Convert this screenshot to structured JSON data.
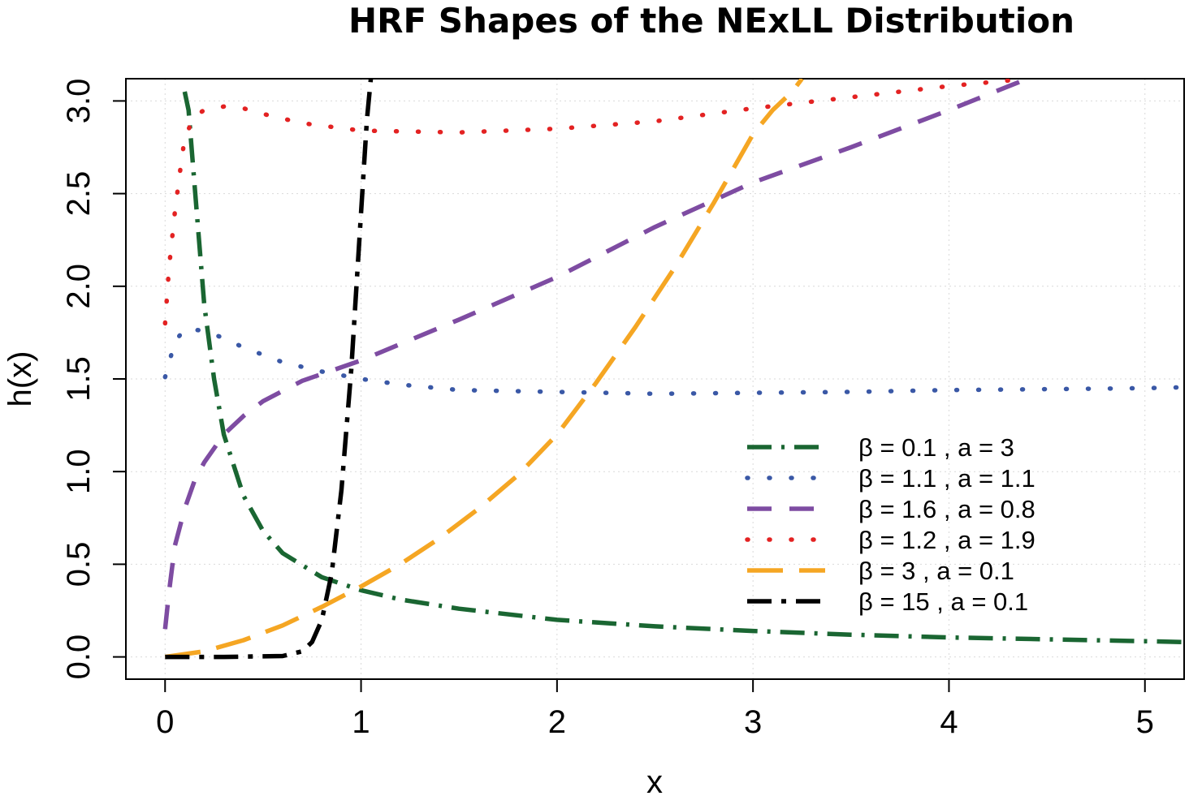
{
  "chart_data": {
    "type": "line",
    "title": "HRF Shapes of the NExLL Distribution",
    "xlabel": "x",
    "ylabel": "h(x)",
    "xlim": [
      -0.2,
      5.2
    ],
    "ylim": [
      -0.12,
      3.12
    ],
    "x_ticks": [
      0,
      1,
      2,
      3,
      4,
      5
    ],
    "x_tick_labels": [
      "0",
      "1",
      "2",
      "3",
      "4",
      "5"
    ],
    "y_ticks": [
      0,
      0.5,
      1,
      1.5,
      2,
      2.5,
      3
    ],
    "y_tick_labels": [
      "0.0",
      "0.5",
      "1.0",
      "1.5",
      "2.0",
      "2.5",
      "3.0"
    ],
    "grid": true,
    "legend_position": "right",
    "series": [
      {
        "name": "β = 0.1 ,  a = 3",
        "color": "#1a6632",
        "style": "dashdot",
        "x": [
          0.1,
          0.12,
          0.15,
          0.2,
          0.25,
          0.3,
          0.4,
          0.5,
          0.6,
          0.8,
          1.0,
          1.2,
          1.5,
          2.0,
          2.5,
          3.0,
          3.5,
          4.0,
          4.5,
          5.0,
          5.2
        ],
        "y": [
          3.05,
          2.95,
          2.55,
          1.9,
          1.5,
          1.2,
          0.87,
          0.68,
          0.56,
          0.43,
          0.36,
          0.31,
          0.26,
          0.2,
          0.165,
          0.14,
          0.12,
          0.105,
          0.095,
          0.085,
          0.08
        ]
      },
      {
        "name": "β = 1.1 ,  a = 1.1",
        "color": "#3a58a6",
        "style": "dotted",
        "x": [
          0.0,
          0.05,
          0.1,
          0.2,
          0.3,
          0.4,
          0.5,
          0.6,
          0.8,
          1.0,
          1.2,
          1.5,
          2.0,
          2.5,
          3.0,
          3.5,
          4.0,
          4.5,
          5.0,
          5.2
        ],
        "y": [
          1.51,
          1.7,
          1.77,
          1.76,
          1.72,
          1.67,
          1.63,
          1.59,
          1.54,
          1.5,
          1.47,
          1.44,
          1.43,
          1.42,
          1.425,
          1.43,
          1.44,
          1.445,
          1.45,
          1.455
        ]
      },
      {
        "name": "β = 1.6 ,  a = 0.8",
        "color": "#7e4ca2",
        "style": "dashed",
        "x": [
          0.0,
          0.02,
          0.05,
          0.1,
          0.15,
          0.2,
          0.3,
          0.4,
          0.5,
          0.7,
          1.0,
          1.5,
          2.0,
          2.5,
          3.0,
          3.5,
          4.0,
          4.4
        ],
        "y": [
          0.15,
          0.35,
          0.6,
          0.8,
          0.95,
          1.05,
          1.2,
          1.3,
          1.38,
          1.49,
          1.6,
          1.82,
          2.05,
          2.32,
          2.56,
          2.75,
          2.95,
          3.12
        ]
      },
      {
        "name": "β = 1.2 ,  a = 1.9",
        "color": "#e32222",
        "style": "dotted",
        "x": [
          0.0,
          0.02,
          0.05,
          0.08,
          0.1,
          0.15,
          0.2,
          0.3,
          0.4,
          0.5,
          0.7,
          1.0,
          1.5,
          2.0,
          2.5,
          3.0,
          3.5,
          4.0,
          4.4
        ],
        "y": [
          1.8,
          2.1,
          2.4,
          2.65,
          2.8,
          2.92,
          2.95,
          2.97,
          2.96,
          2.93,
          2.88,
          2.84,
          2.83,
          2.85,
          2.89,
          2.96,
          3.02,
          3.08,
          3.12
        ]
      },
      {
        "name": "β = 3 ,  a = 0.1",
        "color": "#f5a623",
        "style": "longdash",
        "x": [
          0.0,
          0.2,
          0.4,
          0.6,
          0.8,
          1.0,
          1.2,
          1.4,
          1.6,
          1.8,
          2.0,
          2.2,
          2.4,
          2.6,
          2.8,
          3.0,
          3.1,
          3.2,
          3.25
        ],
        "y": [
          0.0,
          0.03,
          0.09,
          0.17,
          0.27,
          0.38,
          0.5,
          0.64,
          0.8,
          0.98,
          1.2,
          1.48,
          1.78,
          2.1,
          2.45,
          2.82,
          2.95,
          3.05,
          3.12
        ]
      },
      {
        "name": "β = 15 ,  a = 0.1",
        "color": "#000000",
        "style": "twodash",
        "x": [
          0.0,
          0.3,
          0.6,
          0.7,
          0.75,
          0.8,
          0.85,
          0.9,
          0.95,
          1.0,
          1.03,
          1.05
        ],
        "y": [
          0.0,
          0.0,
          0.005,
          0.03,
          0.08,
          0.2,
          0.45,
          0.9,
          1.55,
          2.4,
          2.9,
          3.12
        ]
      }
    ]
  }
}
